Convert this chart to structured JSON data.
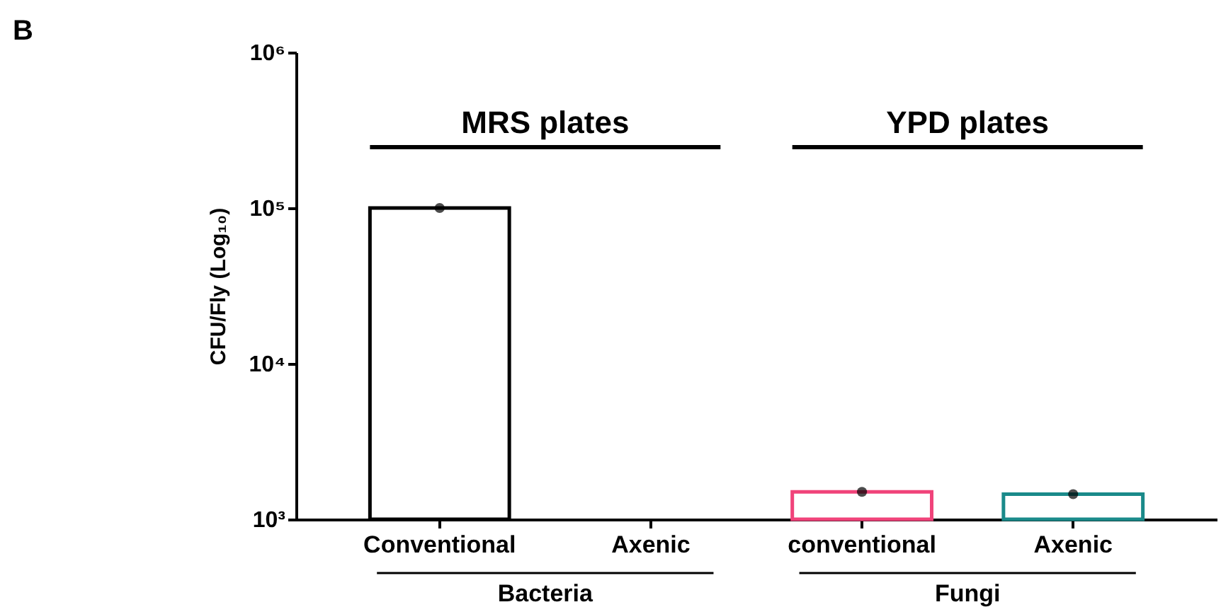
{
  "chart_data": {
    "type": "bar",
    "log": "y",
    "ylabel": "CFU/Fly (Log₁₀)",
    "categories": [
      "Conventional",
      "Axenic",
      "conventional",
      "Axenic"
    ],
    "series": [
      {
        "type": "bar",
        "values": [
          100000,
          null,
          1500,
          1450
        ],
        "colors": [
          "#000000",
          null,
          "#f0437a",
          "#1a8a8a"
        ]
      },
      {
        "type": "scatter",
        "color": "#000000",
        "values": [
          100000,
          null,
          1500,
          1450
        ]
      }
    ],
    "ylim": [
      1000,
      1000000
    ],
    "yticks": [
      {
        "value": 1000,
        "label": "10³"
      },
      {
        "value": 10000,
        "label": "10⁴"
      },
      {
        "value": 100000,
        "label": "10⁵"
      },
      {
        "value": 1000000,
        "label": "10⁶"
      }
    ],
    "grid": false,
    "marker": "circle",
    "annotations": [
      "B",
      "MRS plates",
      "YPD plates",
      "Bacteria",
      "Fungi"
    ]
  }
}
